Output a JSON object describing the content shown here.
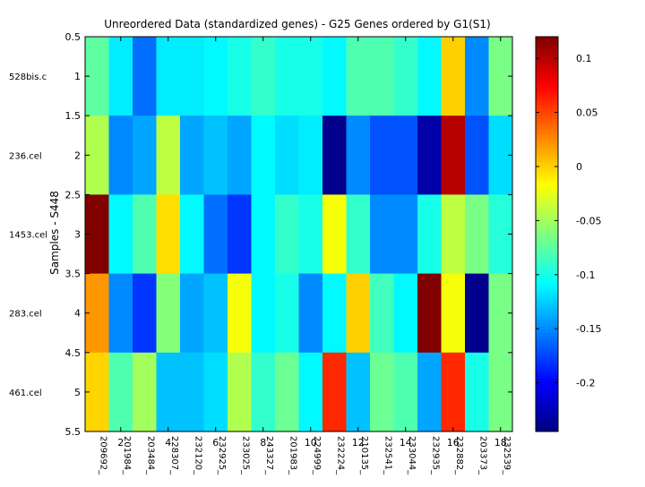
{
  "chart_data": {
    "type": "heatmap",
    "title": "Unreordered Data (standardized genes) - G25 Genes ordered by G1(S1)",
    "ylabel": "Samples - S448",
    "xlabel": "",
    "ylim": [
      0.5,
      5.5
    ],
    "xlim": [
      0.5,
      18.5
    ],
    "y_ticks": [
      "0.5",
      "1",
      "1.5",
      "2",
      "2.5",
      "3",
      "3.5",
      "4",
      "4.5",
      "5",
      "5.5"
    ],
    "x_ticks": [
      "2",
      "4",
      "6",
      "8",
      "10",
      "12",
      "14",
      "16",
      "18"
    ],
    "rows": [
      "528bis.c",
      "236.cel",
      "1453.cel",
      "283.cel",
      "461.cel"
    ],
    "columns": [
      "209692_",
      "201984_",
      "203484_",
      "228307_",
      "232120_",
      "232925_",
      "233025_",
      "243327_",
      "201983_",
      "224999_",
      "232224_",
      "210135_",
      "232541_",
      "233044_",
      "232935_",
      "232882_",
      "203373_",
      "232539_"
    ],
    "values": [
      [
        -0.075,
        -0.115,
        -0.16,
        -0.115,
        -0.115,
        -0.11,
        -0.1,
        -0.09,
        -0.1,
        -0.1,
        -0.11,
        -0.08,
        -0.08,
        -0.09,
        -0.11,
        0.0,
        -0.15,
        -0.065
      ],
      [
        -0.045,
        -0.15,
        -0.14,
        -0.04,
        -0.14,
        -0.13,
        -0.14,
        -0.11,
        -0.12,
        -0.115,
        -0.24,
        -0.15,
        -0.17,
        -0.17,
        -0.23,
        0.1,
        -0.17,
        -0.12
      ],
      [
        0.12,
        -0.11,
        -0.08,
        -0.005,
        -0.11,
        -0.16,
        -0.18,
        -0.11,
        -0.09,
        -0.1,
        -0.02,
        -0.09,
        -0.15,
        -0.15,
        -0.1,
        -0.04,
        -0.065,
        -0.095
      ],
      [
        0.02,
        -0.15,
        -0.18,
        -0.06,
        -0.14,
        -0.13,
        -0.02,
        -0.11,
        -0.1,
        -0.15,
        -0.11,
        0.0,
        -0.085,
        -0.11,
        0.12,
        -0.02,
        -0.24,
        -0.065
      ],
      [
        -0.002,
        -0.08,
        -0.05,
        -0.13,
        -0.13,
        -0.12,
        -0.045,
        -0.09,
        -0.07,
        -0.11,
        0.06,
        -0.13,
        -0.07,
        -0.08,
        -0.14,
        0.06,
        -0.1,
        -0.065
      ]
    ],
    "colorbar": {
      "colormap": "jet",
      "range": [
        -0.245,
        0.12
      ],
      "ticks": [
        0.1,
        0.05,
        0,
        -0.05,
        -0.1,
        -0.15,
        -0.2
      ],
      "tick_labels": [
        "0.1",
        "0.05",
        "0",
        "-0.05",
        "-0.1",
        "-0.15",
        "-0.2"
      ]
    }
  }
}
